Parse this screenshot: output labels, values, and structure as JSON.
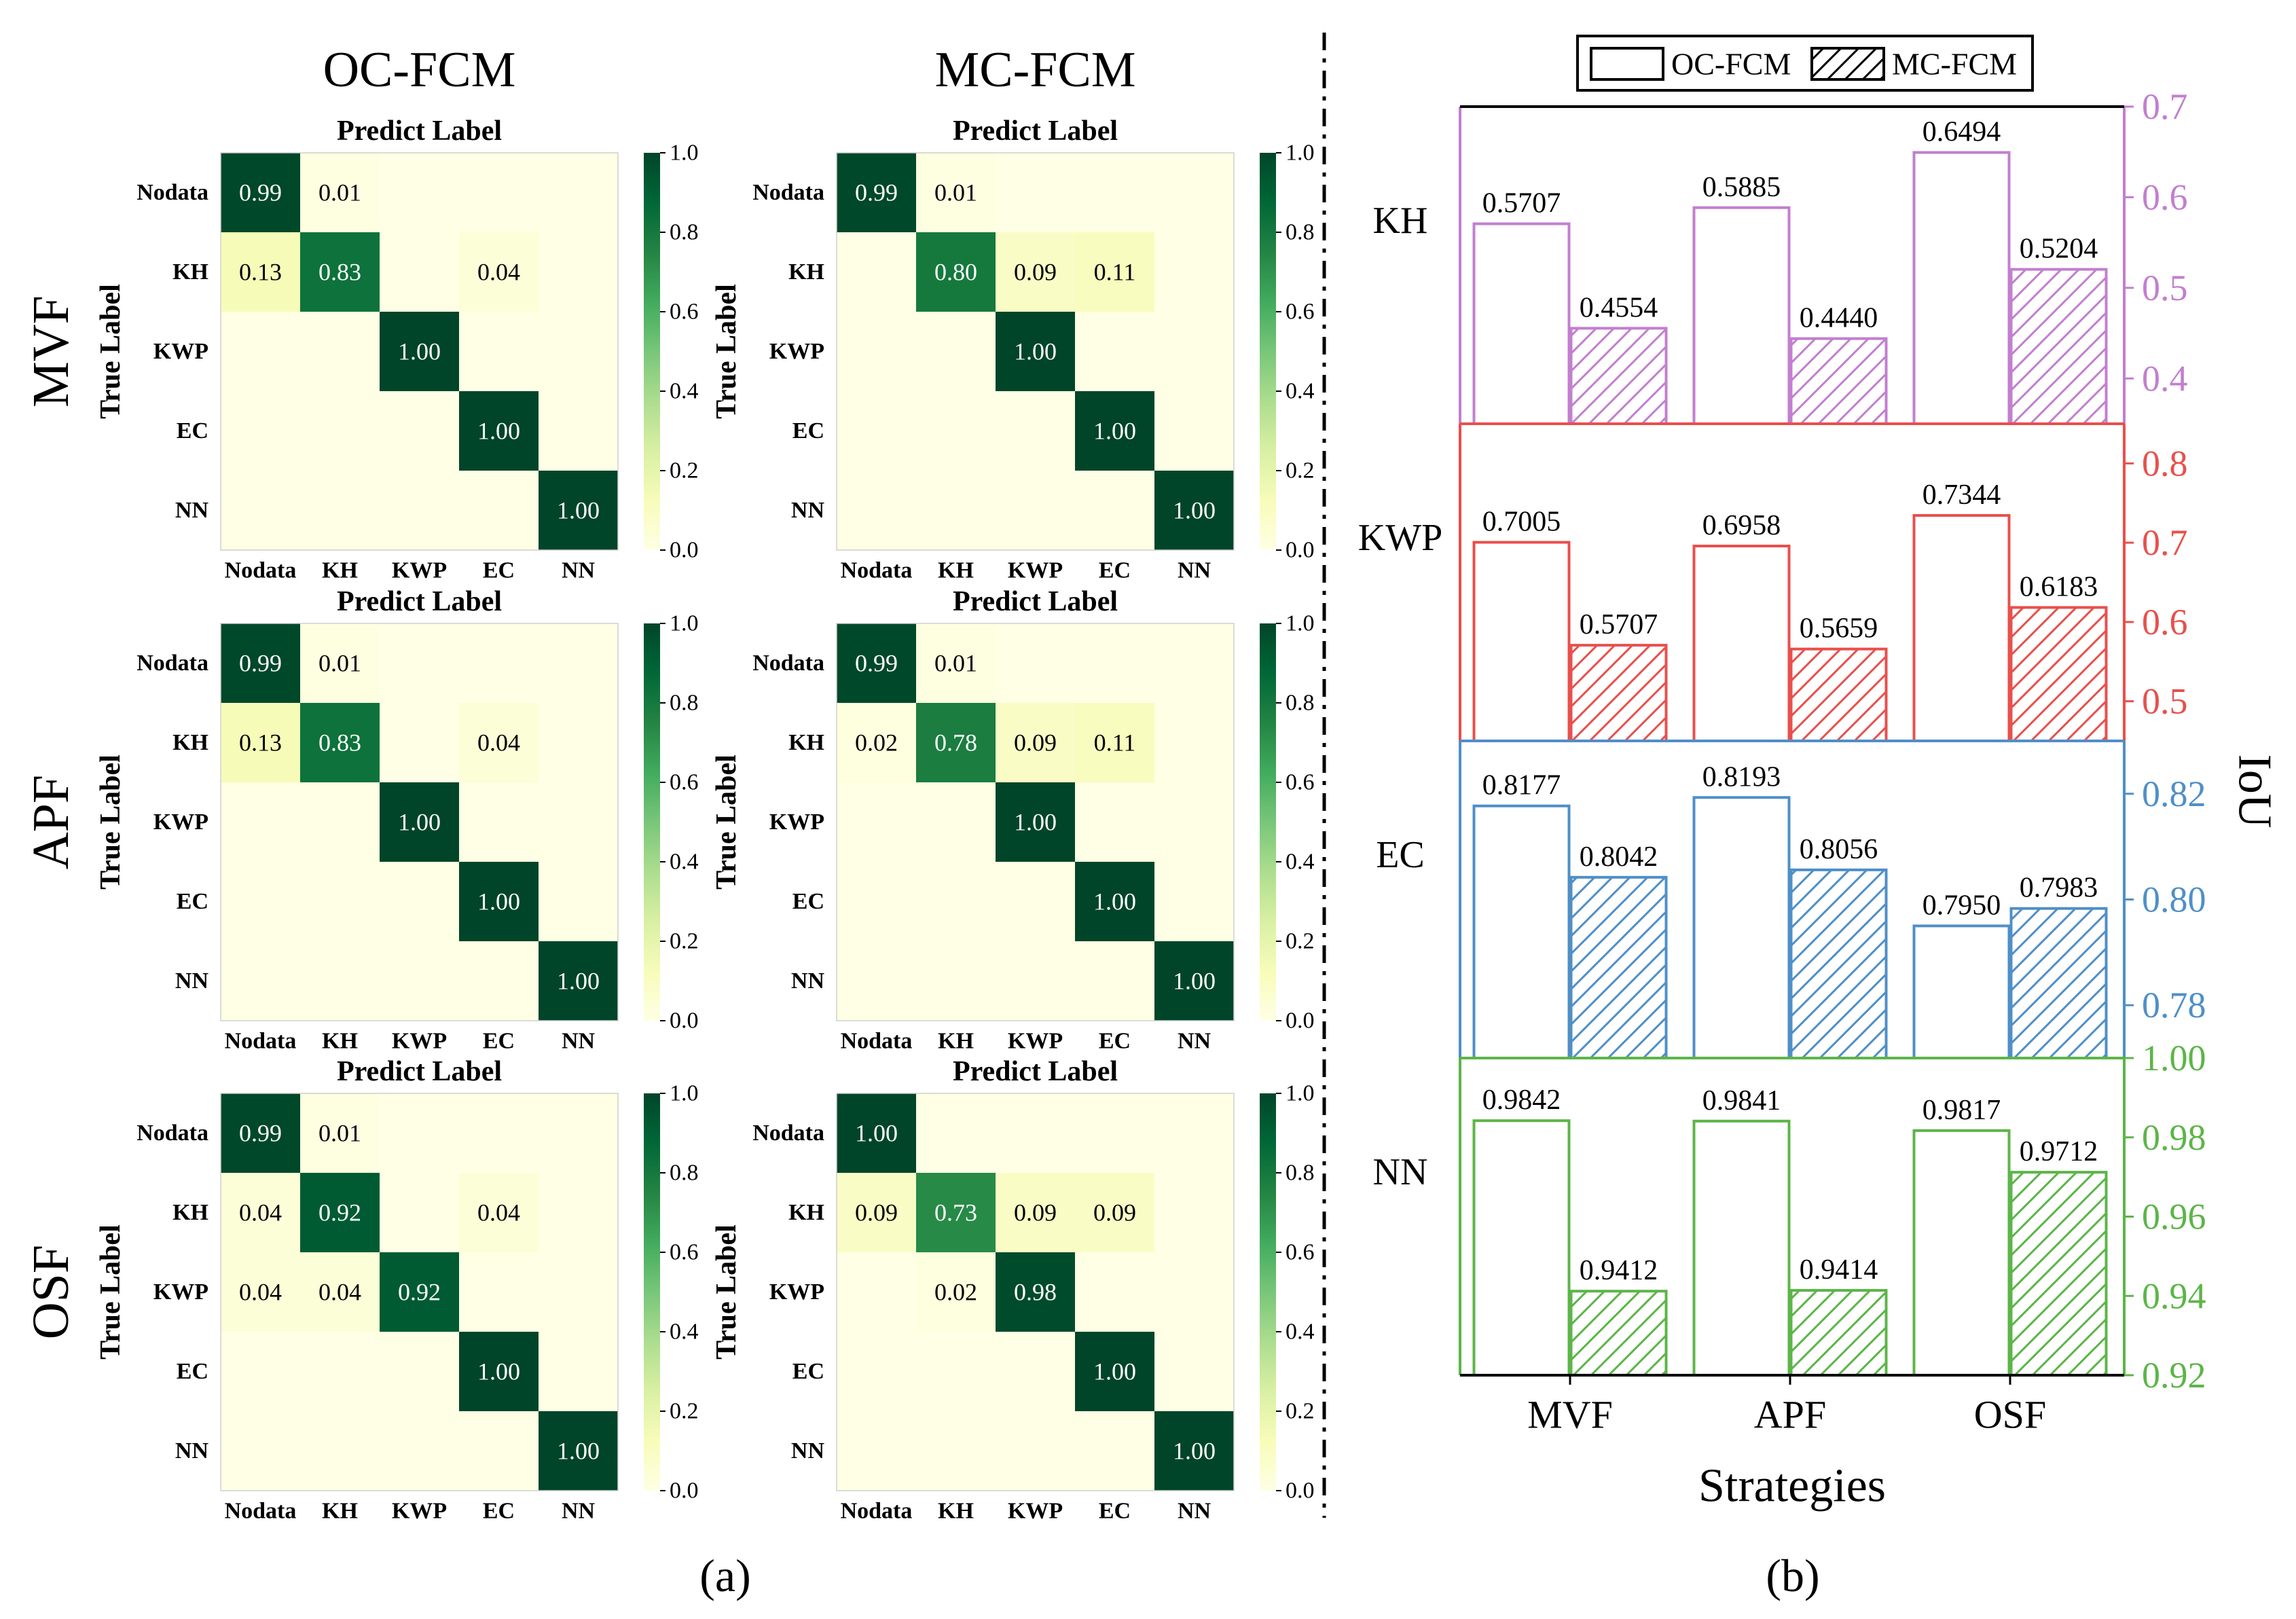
{
  "figure": {
    "col_titles": [
      "OC-FCM",
      "MC-FCM"
    ],
    "row_titles": [
      "MVF",
      "APF",
      "OSF"
    ],
    "panel_a_label": "(a)",
    "panel_b_label": "(b)"
  },
  "chart_data": [
    {
      "type": "heatmap",
      "panel": "a",
      "xlabel": "Predict Label",
      "ylabel": "True Label",
      "classes": [
        "Nodata",
        "KH",
        "KWP",
        "EC",
        "NN"
      ],
      "colorbar": {
        "min": 0.0,
        "max": 1.0,
        "ticks": [
          "0.0",
          "0.2",
          "0.4",
          "0.6",
          "0.8",
          "1.0"
        ]
      },
      "colors": {
        "low": "#ffffe5",
        "mid": "#78c679",
        "high": "#004529"
      },
      "matrices": [
        {
          "method": "OC-FCM",
          "strategy": "MVF",
          "values": [
            [
              0.99,
              0.01,
              0,
              0,
              0
            ],
            [
              0.13,
              0.83,
              0,
              0.04,
              0
            ],
            [
              0,
              0,
              1.0,
              0,
              0
            ],
            [
              0,
              0,
              0,
              1.0,
              0
            ],
            [
              0,
              0,
              0,
              0,
              1.0
            ]
          ],
          "labels": [
            [
              "0.99",
              "0.01",
              "",
              "",
              ""
            ],
            [
              "0.13",
              "0.83",
              "",
              "0.04",
              ""
            ],
            [
              "",
              "",
              "1.00",
              "",
              ""
            ],
            [
              "",
              "",
              "",
              "1.00",
              ""
            ],
            [
              "",
              "",
              "",
              "",
              "1.00"
            ]
          ]
        },
        {
          "method": "MC-FCM",
          "strategy": "MVF",
          "values": [
            [
              0.99,
              0.01,
              0,
              0,
              0
            ],
            [
              0,
              0.8,
              0.09,
              0.11,
              0
            ],
            [
              0,
              0,
              1.0,
              0,
              0
            ],
            [
              0,
              0,
              0,
              1.0,
              0
            ],
            [
              0,
              0,
              0,
              0,
              1.0
            ]
          ],
          "labels": [
            [
              "0.99",
              "0.01",
              "",
              "",
              ""
            ],
            [
              "",
              "0.80",
              "0.09",
              "0.11",
              ""
            ],
            [
              "",
              "",
              "1.00",
              "",
              ""
            ],
            [
              "",
              "",
              "",
              "1.00",
              ""
            ],
            [
              "",
              "",
              "",
              "",
              "1.00"
            ]
          ]
        },
        {
          "method": "OC-FCM",
          "strategy": "APF",
          "values": [
            [
              0.99,
              0.01,
              0,
              0,
              0
            ],
            [
              0.13,
              0.83,
              0,
              0.04,
              0
            ],
            [
              0,
              0,
              1.0,
              0,
              0
            ],
            [
              0,
              0,
              0,
              1.0,
              0
            ],
            [
              0,
              0,
              0,
              0,
              1.0
            ]
          ],
          "labels": [
            [
              "0.99",
              "0.01",
              "",
              "",
              ""
            ],
            [
              "0.13",
              "0.83",
              "",
              "0.04",
              ""
            ],
            [
              "",
              "",
              "1.00",
              "",
              ""
            ],
            [
              "",
              "",
              "",
              "1.00",
              ""
            ],
            [
              "",
              "",
              "",
              "",
              "1.00"
            ]
          ]
        },
        {
          "method": "MC-FCM",
          "strategy": "APF",
          "values": [
            [
              0.99,
              0.01,
              0,
              0,
              0
            ],
            [
              0.02,
              0.78,
              0.09,
              0.11,
              0
            ],
            [
              0,
              0,
              1.0,
              0,
              0
            ],
            [
              0,
              0,
              0,
              1.0,
              0
            ],
            [
              0,
              0,
              0,
              0,
              1.0
            ]
          ],
          "labels": [
            [
              "0.99",
              "0.01",
              "",
              "",
              ""
            ],
            [
              "0.02",
              "0.78",
              "0.09",
              "0.11",
              ""
            ],
            [
              "",
              "",
              "1.00",
              "",
              ""
            ],
            [
              "",
              "",
              "",
              "1.00",
              ""
            ],
            [
              "",
              "",
              "",
              "",
              "1.00"
            ]
          ]
        },
        {
          "method": "OC-FCM",
          "strategy": "OSF",
          "values": [
            [
              0.99,
              0.01,
              0,
              0,
              0
            ],
            [
              0.04,
              0.92,
              0,
              0.04,
              0
            ],
            [
              0.04,
              0.04,
              0.92,
              0,
              0
            ],
            [
              0,
              0,
              0,
              1.0,
              0
            ],
            [
              0,
              0,
              0,
              0,
              1.0
            ]
          ],
          "labels": [
            [
              "0.99",
              "0.01",
              "",
              "",
              ""
            ],
            [
              "0.04",
              "0.92",
              "",
              "0.04",
              ""
            ],
            [
              "0.04",
              "0.04",
              "0.92",
              "",
              ""
            ],
            [
              "",
              "",
              "",
              "1.00",
              ""
            ],
            [
              "",
              "",
              "",
              "",
              "1.00"
            ]
          ]
        },
        {
          "method": "MC-FCM",
          "strategy": "OSF",
          "values": [
            [
              1.0,
              0,
              0,
              0,
              0
            ],
            [
              0.09,
              0.73,
              0.09,
              0.09,
              0
            ],
            [
              0,
              0.02,
              0.98,
              0,
              0
            ],
            [
              0,
              0,
              0,
              1.0,
              0
            ],
            [
              0,
              0,
              0,
              0,
              1.0
            ]
          ],
          "labels": [
            [
              "1.00",
              "",
              "",
              "",
              ""
            ],
            [
              "0.09",
              "0.73",
              "0.09",
              "0.09",
              ""
            ],
            [
              "",
              "0.02",
              "0.98",
              "",
              ""
            ],
            [
              "",
              "",
              "",
              "1.00",
              ""
            ],
            [
              "",
              "",
              "",
              "",
              "1.00"
            ]
          ]
        }
      ]
    },
    {
      "type": "bar",
      "panel": "b",
      "categories": [
        "MVF",
        "APF",
        "OSF"
      ],
      "xlabel": "Strategies",
      "ylabel": "IoU",
      "legend": [
        "OC-FCM",
        "MC-FCM"
      ],
      "legend_position": "top",
      "subplots": [
        {
          "class": "KH",
          "color": "#c27fcf",
          "ylim": [
            0.35,
            0.7
          ],
          "yticks": [
            "0.4",
            "0.5",
            "0.6",
            "0.7"
          ],
          "series": [
            {
              "name": "OC-FCM",
              "values": [
                0.5707,
                0.5885,
                0.6494
              ],
              "labels": [
                "0.5707",
                "0.5885",
                "0.6494"
              ]
            },
            {
              "name": "MC-FCM",
              "values": [
                0.4554,
                0.444,
                0.5204
              ],
              "labels": [
                "0.4554",
                "0.4440",
                "0.5204"
              ]
            }
          ]
        },
        {
          "class": "KWP",
          "color": "#e8504c",
          "ylim": [
            0.45,
            0.85
          ],
          "yticks": [
            "0.5",
            "0.6",
            "0.7",
            "0.8"
          ],
          "series": [
            {
              "name": "OC-FCM",
              "values": [
                0.7005,
                0.6958,
                0.7344
              ],
              "labels": [
                "0.7005",
                "0.6958",
                "0.7344"
              ]
            },
            {
              "name": "MC-FCM",
              "values": [
                0.5707,
                0.5659,
                0.6183
              ],
              "labels": [
                "0.5707",
                "0.5659",
                "0.6183"
              ]
            }
          ]
        },
        {
          "class": "EC",
          "color": "#4f8fc7",
          "ylim": [
            0.77,
            0.83
          ],
          "yticks": [
            "0.78",
            "0.80",
            "0.82"
          ],
          "series": [
            {
              "name": "OC-FCM",
              "values": [
                0.8177,
                0.8193,
                0.795
              ],
              "labels": [
                "0.8177",
                "0.8193",
                "0.7950"
              ]
            },
            {
              "name": "MC-FCM",
              "values": [
                0.8042,
                0.8056,
                0.7983
              ],
              "labels": [
                "0.8042",
                "0.8056",
                "0.7983"
              ]
            }
          ]
        },
        {
          "class": "NN",
          "color": "#5cb548",
          "ylim": [
            0.92,
            1.0
          ],
          "yticks": [
            "0.92",
            "0.94",
            "0.96",
            "0.98",
            "1.00"
          ],
          "series": [
            {
              "name": "OC-FCM",
              "values": [
                0.9842,
                0.9841,
                0.9817
              ],
              "labels": [
                "0.9842",
                "0.9841",
                "0.9817"
              ]
            },
            {
              "name": "MC-FCM",
              "values": [
                0.9412,
                0.9414,
                0.9712
              ],
              "labels": [
                "0.9412",
                "0.9414",
                "0.9712"
              ]
            }
          ]
        }
      ]
    }
  ]
}
